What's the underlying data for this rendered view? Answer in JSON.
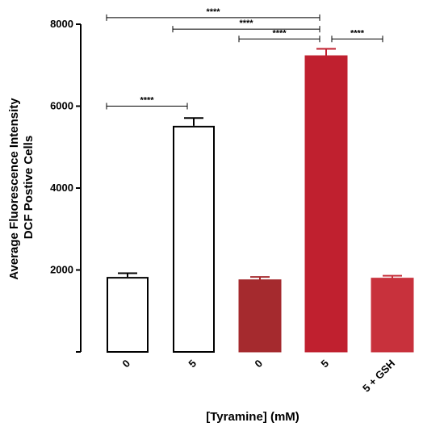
{
  "chart_data": {
    "type": "bar",
    "categories": [
      "0",
      "5",
      "0",
      "5",
      "5 + GSH"
    ],
    "values": [
      1830,
      5520,
      1760,
      7230,
      1800
    ],
    "errors": [
      90,
      190,
      70,
      170,
      60
    ],
    "colors": [
      "#ffffff",
      "#ffffff",
      "#a52a2e",
      "#c0202f",
      "#c8313c"
    ],
    "edge_colors": [
      "#000000",
      "#000000",
      "#a52a2e",
      "#c0202f",
      "#c8313c"
    ],
    "error_colors": [
      "#000000",
      "#000000",
      "#a52a2e",
      "#c0202f",
      "#c8313c"
    ],
    "ylabel_lines": [
      "Average Fluorescence Intensity",
      "DCF Postive Cells"
    ],
    "xlabel": "[Tyramine] (mM)",
    "ylim": [
      0,
      8000
    ],
    "yticks": [
      2000,
      4000,
      6000,
      8000
    ],
    "ytick_labels": [
      "2000",
      "4000",
      "6000",
      "8000"
    ],
    "grid": false,
    "significance": [
      {
        "from": 0,
        "to": 1,
        "level": 6000,
        "label": "****"
      },
      {
        "from": 0,
        "to": 3,
        "level": 8160,
        "label": "****"
      },
      {
        "from": 1,
        "to": 3,
        "level": 7880,
        "label": "****"
      },
      {
        "from": 2,
        "to": 3,
        "level": 7640,
        "label": "****"
      },
      {
        "from": 3,
        "to": 4,
        "level": 7640,
        "label": "****"
      }
    ]
  }
}
